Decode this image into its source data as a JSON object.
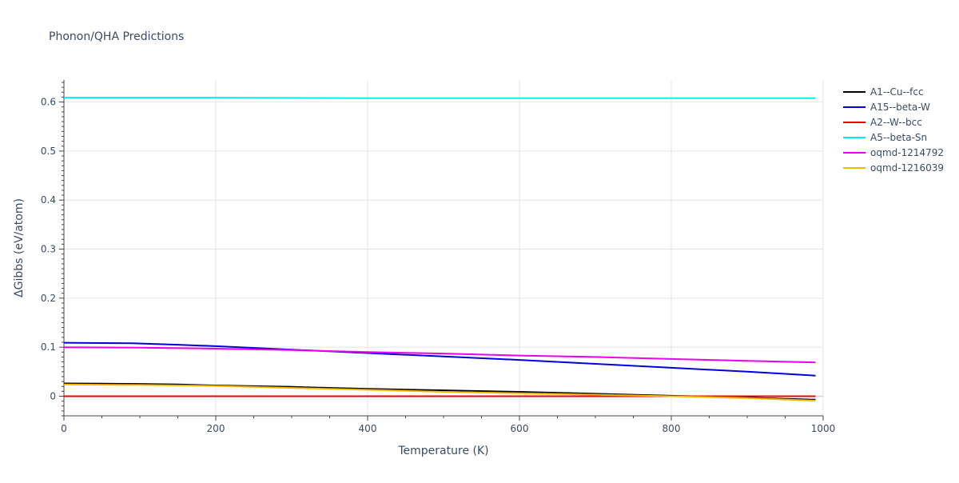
{
  "chart_data": {
    "type": "line",
    "title": "Phonon/QHA Predictions",
    "xlabel": "Temperature (K)",
    "ylabel": "ΔGibbs (eV/atom)",
    "xlim": [
      0,
      1000
    ],
    "ylim": [
      -0.04,
      0.645
    ],
    "x_ticks": [
      0,
      200,
      400,
      600,
      800,
      1000
    ],
    "x_tick_labels": [
      "0",
      "200",
      "400",
      "600",
      "800",
      "1000"
    ],
    "y_ticks": [
      0,
      0.1,
      0.2,
      0.3,
      0.4,
      0.5,
      0.6
    ],
    "y_tick_labels": [
      "0",
      "0.1",
      "0.2",
      "0.3",
      "0.4",
      "0.5",
      "0.6"
    ],
    "grid": true,
    "legend_position": "top-right",
    "series": [
      {
        "name": "A1--Cu--fcc",
        "color": "#000000",
        "x": [
          0,
          100,
          150,
          200,
          300,
          400,
          500,
          600,
          700,
          800,
          900,
          990
        ],
        "y": [
          0.026,
          0.025,
          0.024,
          0.022,
          0.019,
          0.015,
          0.012,
          0.009,
          0.005,
          0.001,
          -0.003,
          -0.007
        ]
      },
      {
        "name": "A15--beta-W",
        "color": "#0000dd",
        "x": [
          0,
          90,
          150,
          200,
          300,
          400,
          500,
          600,
          700,
          800,
          900,
          990
        ],
        "y": [
          0.109,
          0.108,
          0.105,
          0.102,
          0.095,
          0.088,
          0.081,
          0.074,
          0.066,
          0.058,
          0.05,
          0.042
        ]
      },
      {
        "name": "A2--W--bcc",
        "color": "#ee0000",
        "x": [
          0,
          200,
          400,
          600,
          800,
          990
        ],
        "y": [
          0,
          0,
          0,
          0,
          0,
          0
        ]
      },
      {
        "name": "A5--beta-Sn",
        "color": "#00eeee",
        "x": [
          0,
          200,
          400,
          600,
          800,
          990
        ],
        "y": [
          0.609,
          0.609,
          0.608,
          0.608,
          0.608,
          0.608
        ]
      },
      {
        "name": "oqmd-1214792",
        "color": "#ee00ee",
        "x": [
          0,
          100,
          200,
          300,
          400,
          500,
          600,
          700,
          800,
          900,
          990
        ],
        "y": [
          0.1,
          0.099,
          0.097,
          0.094,
          0.09,
          0.087,
          0.083,
          0.08,
          0.076,
          0.072,
          0.069
        ]
      },
      {
        "name": "oqmd-1216039",
        "color": "#f5b800",
        "x": [
          0,
          100,
          200,
          300,
          400,
          500,
          600,
          700,
          800,
          900,
          990
        ],
        "y": [
          0.024,
          0.023,
          0.021,
          0.017,
          0.013,
          0.009,
          0.006,
          0.003,
          0.0,
          -0.004,
          -0.009
        ]
      }
    ]
  }
}
